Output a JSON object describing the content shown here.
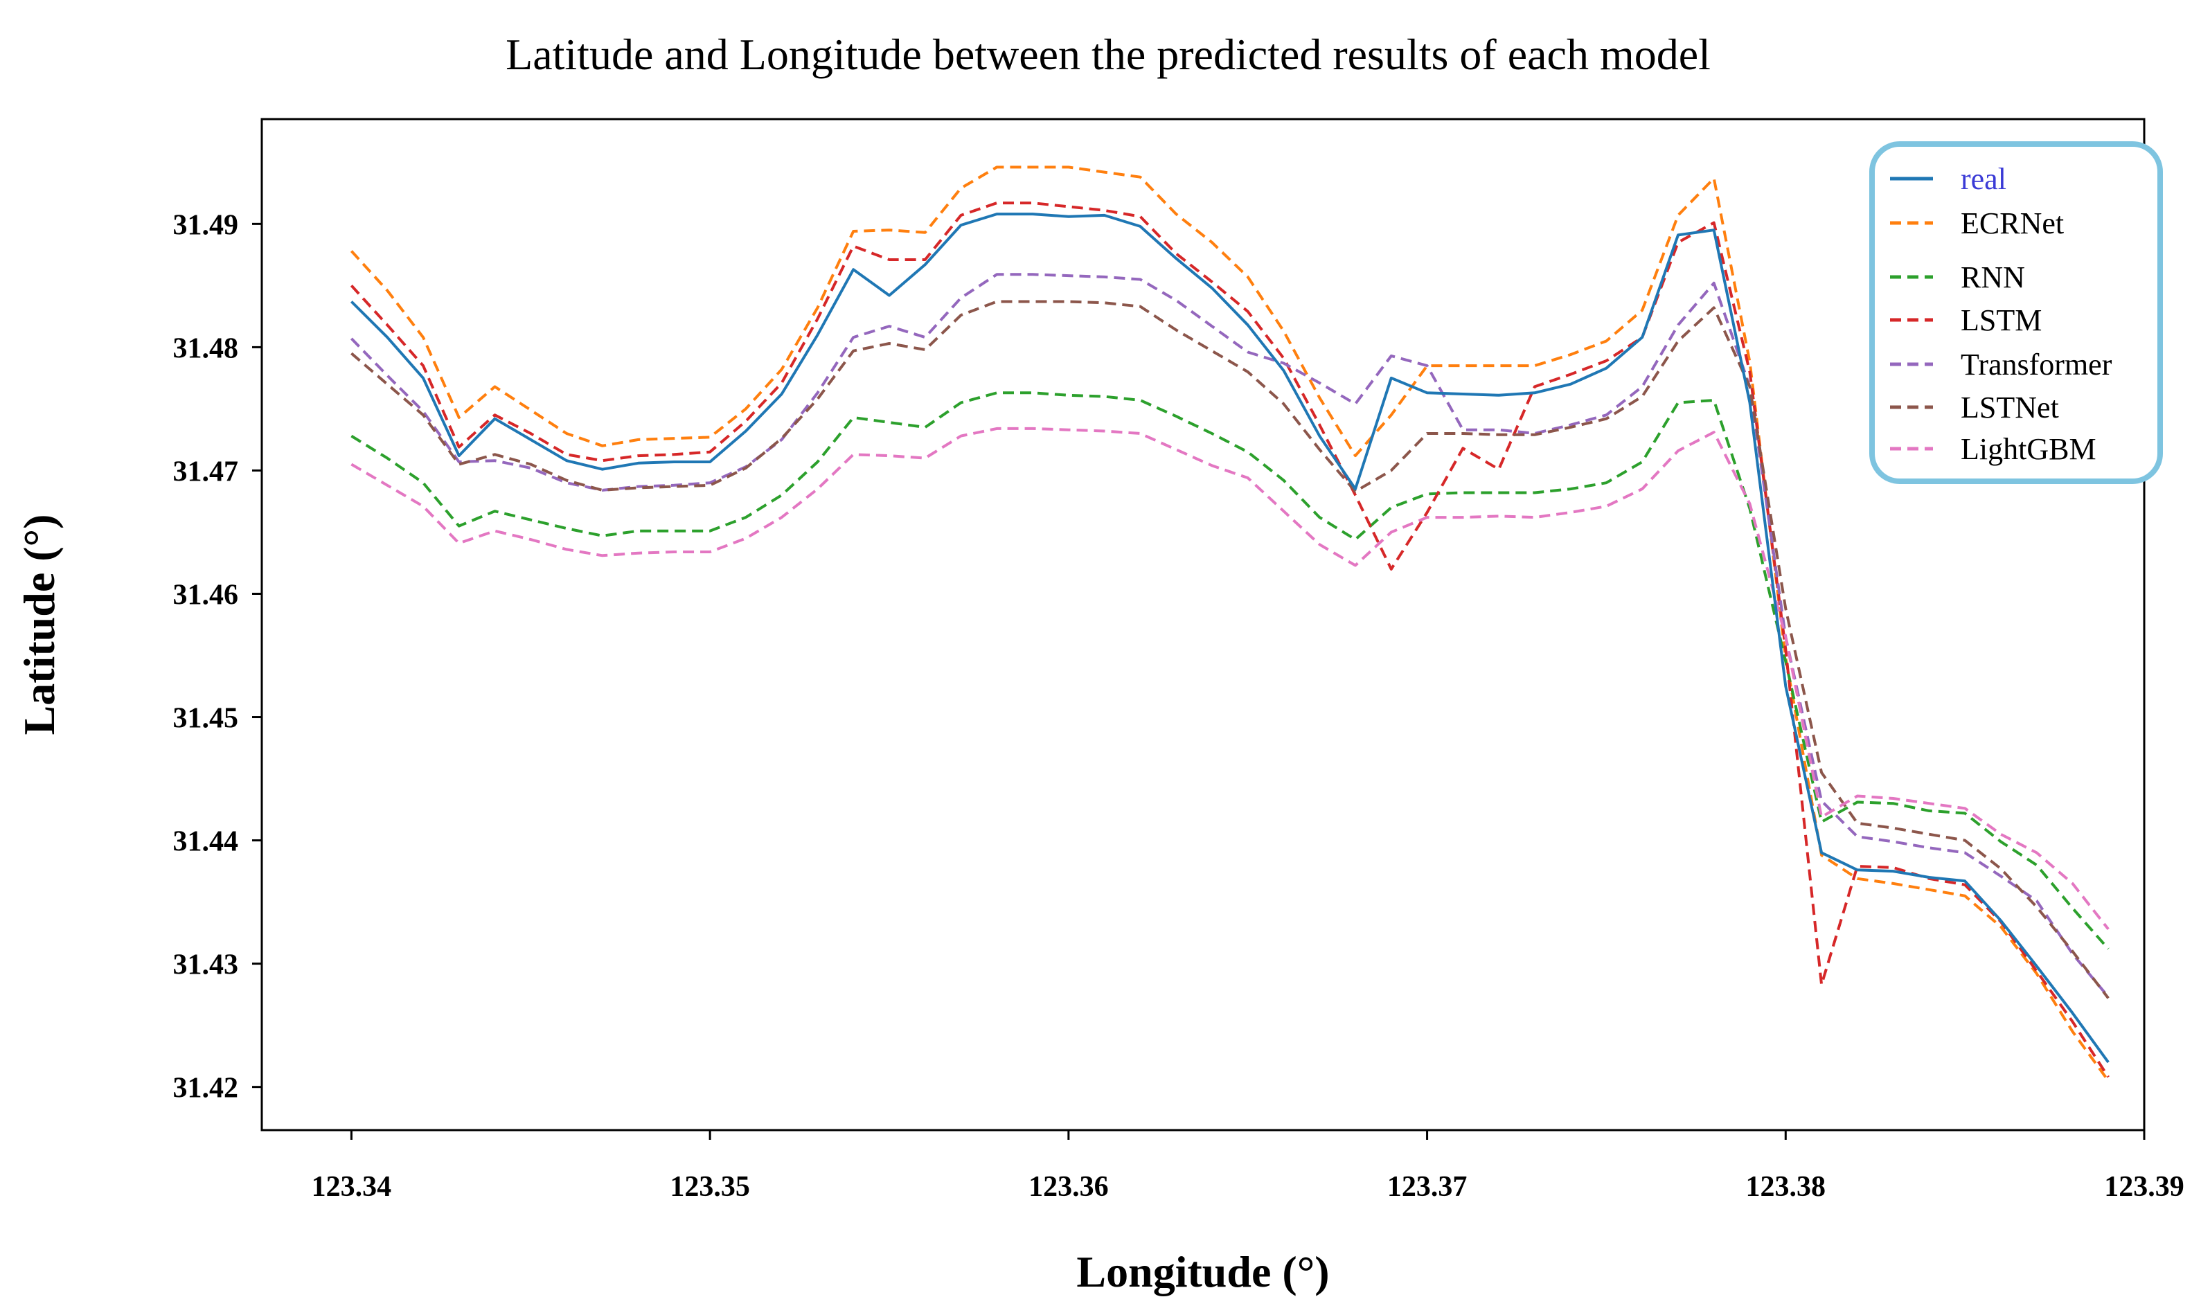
{
  "chart_data": {
    "type": "line",
    "title": "Latitude and Longitude between the predicted results of each model",
    "xlabel": "Longitude (°)",
    "ylabel": "Latitude (°)",
    "xlim": [
      123.3375,
      123.39
    ],
    "ylim": [
      31.4165,
      31.4985
    ],
    "xticks": [
      123.34,
      123.35,
      123.36,
      123.37,
      123.38,
      123.39
    ],
    "xtick_labels": [
      "123.34",
      "123.35",
      "123.36",
      "123.37",
      "123.38",
      "123.39"
    ],
    "yticks": [
      31.42,
      31.43,
      31.44,
      31.45,
      31.46,
      31.47,
      31.48,
      31.49
    ],
    "ytick_labels": [
      "31.42",
      "31.43",
      "31.44",
      "31.45",
      "31.46",
      "31.47",
      "31.48",
      "31.49"
    ],
    "legend_position": "top-right",
    "x": [
      123.34,
      123.341,
      123.342,
      123.343,
      123.344,
      123.345,
      123.346,
      123.347,
      123.348,
      123.349,
      123.35,
      123.351,
      123.352,
      123.353,
      123.354,
      123.355,
      123.356,
      123.357,
      123.358,
      123.359,
      123.36,
      123.361,
      123.362,
      123.363,
      123.364,
      123.365,
      123.366,
      123.367,
      123.368,
      123.369,
      123.37,
      123.371,
      123.372,
      123.373,
      123.374,
      123.375,
      123.376,
      123.377,
      123.378,
      123.379,
      123.38,
      123.381,
      123.382,
      123.383,
      123.384,
      123.385,
      123.386,
      123.387,
      123.388,
      123.389
    ],
    "series": [
      {
        "name": "real",
        "color": "#1f77b4",
        "dashed": false,
        "values": [
          31.4837,
          31.4808,
          31.4775,
          31.4712,
          31.4742,
          31.4725,
          31.4708,
          31.4701,
          31.4706,
          31.4707,
          31.4707,
          31.4732,
          31.4762,
          31.481,
          31.4863,
          31.4842,
          31.4867,
          31.4899,
          31.4908,
          31.4908,
          31.4906,
          31.4907,
          31.4898,
          31.4872,
          31.4848,
          31.4818,
          31.4781,
          31.4728,
          31.4685,
          31.4775,
          31.4763,
          31.4762,
          31.4761,
          31.4763,
          31.477,
          31.4783,
          31.4808,
          31.4891,
          31.4895,
          31.4755,
          31.4525,
          31.439,
          31.4376,
          31.4375,
          31.437,
          31.4367,
          31.4335,
          31.4298,
          31.426,
          31.422
        ]
      },
      {
        "name": "ECRNet",
        "color": "#ff7f0e",
        "dashed": true,
        "values": [
          31.4878,
          31.4846,
          31.4808,
          31.4743,
          31.4768,
          31.4749,
          31.473,
          31.472,
          31.4725,
          31.4726,
          31.4727,
          31.475,
          31.4782,
          31.4832,
          31.4894,
          31.4895,
          31.4893,
          31.4929,
          31.4946,
          31.4946,
          31.4946,
          31.4942,
          31.4938,
          31.4908,
          31.4885,
          31.4857,
          31.4813,
          31.4759,
          31.4712,
          31.4745,
          31.4785,
          31.4785,
          31.4785,
          31.4785,
          31.4794,
          31.4805,
          31.483,
          31.4907,
          31.4937,
          31.4788,
          31.4548,
          31.4388,
          31.4369,
          31.4365,
          31.436,
          31.4355,
          31.433,
          31.4292,
          31.4245,
          31.4205
        ]
      },
      {
        "name": "RNN",
        "color": "#2ca02c",
        "dashed": true,
        "values": [
          31.4728,
          31.471,
          31.469,
          31.4655,
          31.4667,
          31.466,
          31.4653,
          31.4647,
          31.4651,
          31.4651,
          31.4651,
          31.4662,
          31.468,
          31.4707,
          31.4743,
          31.4739,
          31.4735,
          31.4755,
          31.4763,
          31.4763,
          31.4761,
          31.476,
          31.4757,
          31.4744,
          31.473,
          31.4715,
          31.4692,
          31.4662,
          31.4644,
          31.467,
          31.4681,
          31.4682,
          31.4682,
          31.4682,
          31.4685,
          31.469,
          31.4707,
          31.4755,
          31.4757,
          31.4669,
          31.4545,
          31.4415,
          31.4431,
          31.443,
          31.4424,
          31.4422,
          31.4399,
          31.438,
          31.4345,
          31.4312
        ]
      },
      {
        "name": "LSTM",
        "color": "#d62728",
        "dashed": true,
        "values": [
          31.485,
          31.4818,
          31.4785,
          31.4719,
          31.4745,
          31.473,
          31.4713,
          31.4708,
          31.4712,
          31.4713,
          31.4715,
          31.474,
          31.4771,
          31.4823,
          31.4882,
          31.4871,
          31.4871,
          31.4907,
          31.4917,
          31.4917,
          31.4914,
          31.4911,
          31.4906,
          31.4876,
          31.4853,
          31.4829,
          31.4791,
          31.4737,
          31.468,
          31.462,
          31.4666,
          31.4718,
          31.4701,
          31.4768,
          31.4778,
          31.4789,
          31.4808,
          31.4885,
          31.4901,
          31.478,
          31.4555,
          31.4283,
          31.4379,
          31.4378,
          31.4369,
          31.4364,
          31.4334,
          31.4294,
          31.4253,
          31.4208
        ]
      },
      {
        "name": "Transformer",
        "color": "#9467bd",
        "dashed": true,
        "values": [
          31.4807,
          31.4777,
          31.4748,
          31.4707,
          31.4708,
          31.4702,
          31.469,
          31.4684,
          31.4687,
          31.4688,
          31.469,
          31.4703,
          31.4725,
          31.4763,
          31.4808,
          31.4817,
          31.4808,
          31.484,
          31.4859,
          31.4859,
          31.4858,
          31.4857,
          31.4855,
          31.4838,
          31.4817,
          31.4796,
          31.4787,
          31.4771,
          31.4754,
          31.4793,
          31.4785,
          31.4733,
          31.4733,
          31.473,
          31.4737,
          31.4745,
          31.4768,
          31.4818,
          31.4852,
          31.4768,
          31.4565,
          31.4432,
          31.4403,
          31.4399,
          31.4394,
          31.439,
          31.4371,
          31.4351,
          31.4308,
          31.4273
        ]
      },
      {
        "name": "LSTNet",
        "color": "#8c564b",
        "dashed": true,
        "values": [
          31.4795,
          31.477,
          31.4745,
          31.4705,
          31.4713,
          31.4705,
          31.4692,
          31.4684,
          31.4686,
          31.4687,
          31.4688,
          31.4702,
          31.4726,
          31.4758,
          31.4797,
          31.4803,
          31.4798,
          31.4826,
          31.4837,
          31.4837,
          31.4837,
          31.4836,
          31.4833,
          31.4814,
          31.4797,
          31.478,
          31.4754,
          31.4717,
          31.4683,
          31.47,
          31.473,
          31.473,
          31.4729,
          31.4729,
          31.4735,
          31.4742,
          31.476,
          31.4805,
          31.4832,
          31.4768,
          31.4588,
          31.4455,
          31.4414,
          31.441,
          31.4405,
          31.44,
          31.4377,
          31.4346,
          31.431,
          31.4272
        ]
      },
      {
        "name": "LightGBM",
        "color": "#e377c2",
        "dashed": true,
        "values": [
          31.4705,
          31.4688,
          31.4671,
          31.4641,
          31.4651,
          31.4644,
          31.4636,
          31.4631,
          31.4633,
          31.4634,
          31.4634,
          31.4645,
          31.4662,
          31.4685,
          31.4713,
          31.4712,
          31.471,
          31.4728,
          31.4734,
          31.4734,
          31.4733,
          31.4732,
          31.473,
          31.4717,
          31.4704,
          31.4694,
          31.4667,
          31.464,
          31.4623,
          31.465,
          31.4662,
          31.4662,
          31.4663,
          31.4662,
          31.4666,
          31.4671,
          31.4685,
          31.4716,
          31.4731,
          31.4673,
          31.4565,
          31.4419,
          31.4436,
          31.4434,
          31.443,
          31.4426,
          31.4405,
          31.439,
          31.4365,
          31.4328
        ]
      }
    ]
  }
}
